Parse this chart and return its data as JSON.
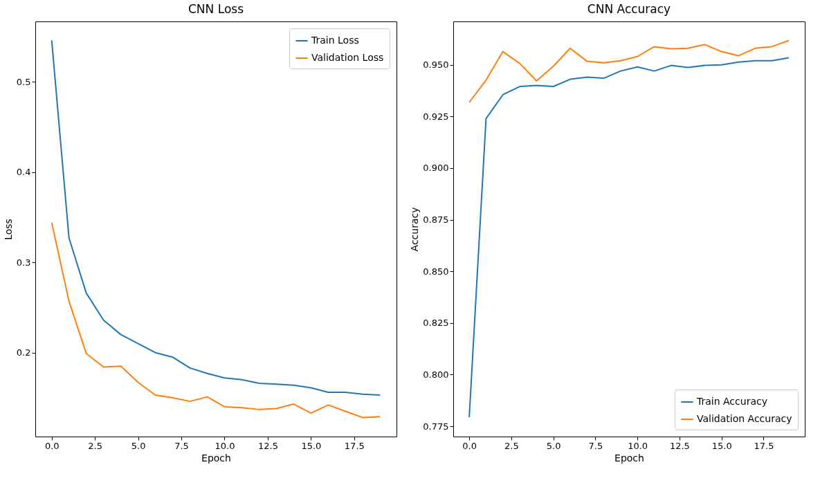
{
  "chart_data": [
    {
      "type": "line",
      "title": "CNN Loss",
      "xlabel": "Epoch",
      "ylabel": "Loss",
      "x": [
        0,
        1,
        2,
        3,
        4,
        5,
        6,
        7,
        8,
        9,
        10,
        11,
        12,
        13,
        14,
        15,
        16,
        17,
        18,
        19
      ],
      "series": [
        {
          "name": "Train Loss",
          "color": "#1f77b4",
          "values": [
            0.546,
            0.327,
            0.266,
            0.236,
            0.22,
            0.21,
            0.2,
            0.195,
            0.183,
            0.177,
            0.172,
            0.17,
            0.166,
            0.165,
            0.164,
            0.161,
            0.156,
            0.156,
            0.154,
            0.153
          ]
        },
        {
          "name": "Validation Loss",
          "color": "#ff7f0e",
          "values": [
            0.344,
            0.257,
            0.199,
            0.184,
            0.185,
            0.167,
            0.153,
            0.15,
            0.146,
            0.151,
            0.14,
            0.139,
            0.137,
            0.138,
            0.143,
            0.133,
            0.142,
            0.135,
            0.128,
            0.129
          ]
        }
      ],
      "xlim": [
        -0.95,
        19.95
      ],
      "xticks": [
        {
          "value": 0,
          "label": "0.0"
        },
        {
          "value": 2.5,
          "label": "2.5"
        },
        {
          "value": 5,
          "label": "5.0"
        },
        {
          "value": 7.5,
          "label": "7.5"
        },
        {
          "value": 10,
          "label": "10.0"
        },
        {
          "value": 12.5,
          "label": "12.5"
        },
        {
          "value": 15,
          "label": "15.0"
        },
        {
          "value": 17.5,
          "label": "17.5"
        }
      ],
      "ylim": [
        0.107,
        0.567
      ],
      "yticks": [
        0.2,
        0.3,
        0.4,
        0.5
      ],
      "grid": false,
      "legend": "top right",
      "line_style": "solid"
    },
    {
      "type": "line",
      "title": "CNN Accuracy",
      "xlabel": "Epoch",
      "ylabel": "Accuracy",
      "x": [
        0,
        1,
        2,
        3,
        4,
        5,
        6,
        7,
        8,
        9,
        10,
        11,
        12,
        13,
        14,
        15,
        16,
        17,
        18,
        19
      ],
      "series": [
        {
          "name": "Train Accuracy",
          "color": "#1f77b4",
          "values": [
            0.7794,
            0.924,
            0.9355,
            0.9395,
            0.94,
            0.9395,
            0.943,
            0.944,
            0.9435,
            0.947,
            0.949,
            0.947,
            0.9497,
            0.9487,
            0.9497,
            0.95,
            0.9513,
            0.952,
            0.952,
            0.9534
          ]
        },
        {
          "name": "Validation Accuracy",
          "color": "#ff7f0e",
          "values": [
            0.9318,
            0.9426,
            0.9564,
            0.9507,
            0.9422,
            0.9493,
            0.958,
            0.9517,
            0.951,
            0.952,
            0.954,
            0.9588,
            0.9578,
            0.958,
            0.9598,
            0.9564,
            0.9544,
            0.958,
            0.9588,
            0.9618
          ]
        }
      ],
      "xlim": [
        -0.95,
        19.95
      ],
      "xticks": [
        {
          "value": 0,
          "label": "0.0"
        },
        {
          "value": 2.5,
          "label": "2.5"
        },
        {
          "value": 5,
          "label": "5.0"
        },
        {
          "value": 7.5,
          "label": "7.5"
        },
        {
          "value": 10,
          "label": "10.0"
        },
        {
          "value": 12.5,
          "label": "12.5"
        },
        {
          "value": 15,
          "label": "15.0"
        },
        {
          "value": 17.5,
          "label": "17.5"
        }
      ],
      "ylim": [
        0.77,
        0.971
      ],
      "yticks": [
        0.775,
        {
          "value": 0.8,
          "label": "0.800"
        },
        0.825,
        {
          "value": 0.85,
          "label": "0.850"
        },
        0.875,
        {
          "value": 0.9,
          "label": "0.900"
        },
        0.925,
        {
          "value": 0.95,
          "label": "0.950"
        }
      ],
      "grid": false,
      "legend": "bottom right",
      "line_style": "solid"
    }
  ]
}
